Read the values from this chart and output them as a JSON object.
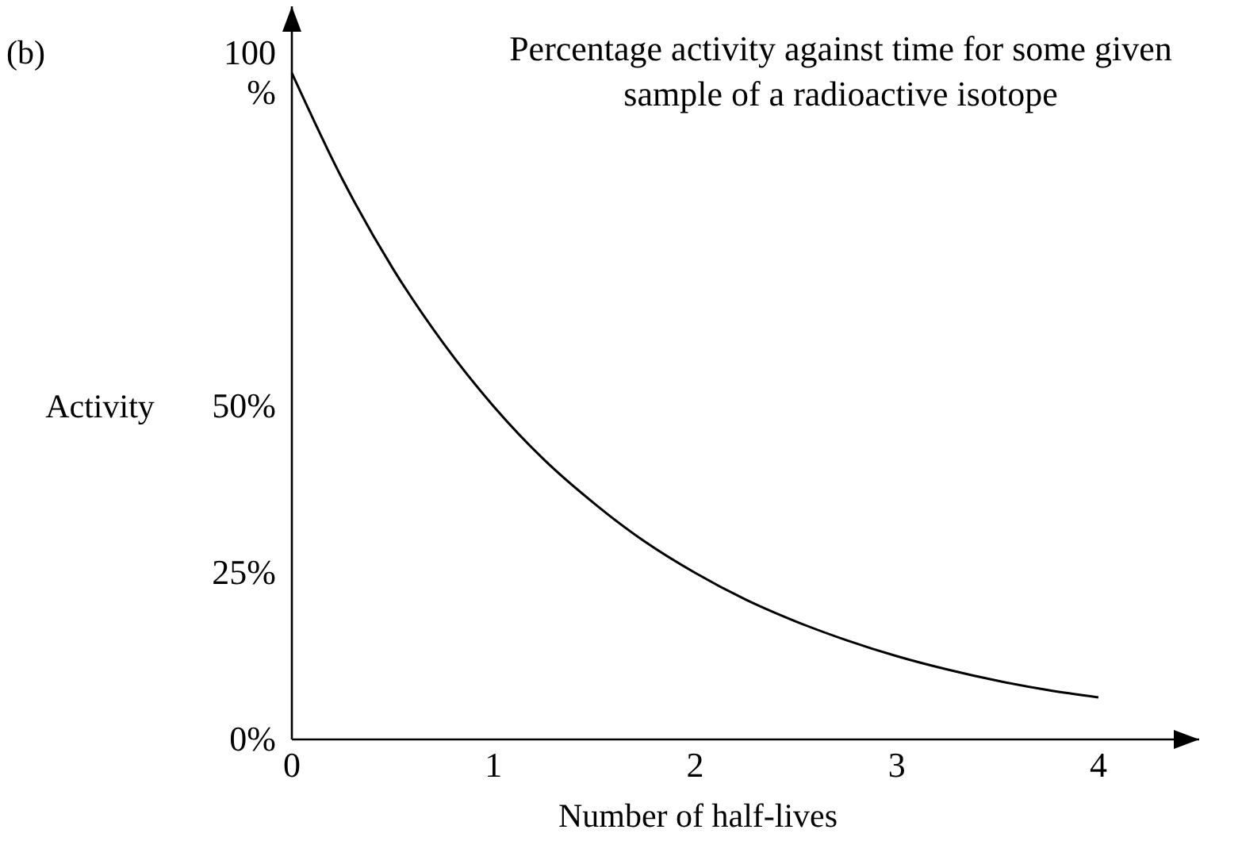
{
  "chart_data": {
    "type": "line",
    "title": "Percentage activity against time for some given sample of a radioactive isotope",
    "xlabel": "Number of half-lives",
    "ylabel": "Activity",
    "annotations": [
      "(b)"
    ],
    "x": [
      0,
      0.25,
      0.5,
      0.75,
      1,
      1.25,
      1.5,
      1.75,
      2,
      2.25,
      2.5,
      2.75,
      3,
      3.25,
      3.5,
      3.75,
      4
    ],
    "series": [
      {
        "color": "#000000",
        "values": [
          100,
          84.1,
          70.7,
          59.5,
          50,
          42.0,
          35.4,
          29.7,
          25,
          21.0,
          17.7,
          14.9,
          12.5,
          10.5,
          8.8,
          7.4,
          6.3
        ]
      }
    ],
    "xlim": [
      0,
      4.5
    ],
    "ylim": [
      0,
      110
    ],
    "xticks": [
      0,
      1,
      2,
      3,
      4
    ],
    "yticks": [
      {
        "value": 0,
        "label": "0%"
      },
      {
        "value": 25,
        "label": "25%"
      },
      {
        "value": 50,
        "label": "50%"
      },
      {
        "value": 100,
        "label": "100 %"
      }
    ],
    "grid": false,
    "marker": "none",
    "line_style": "solid"
  }
}
